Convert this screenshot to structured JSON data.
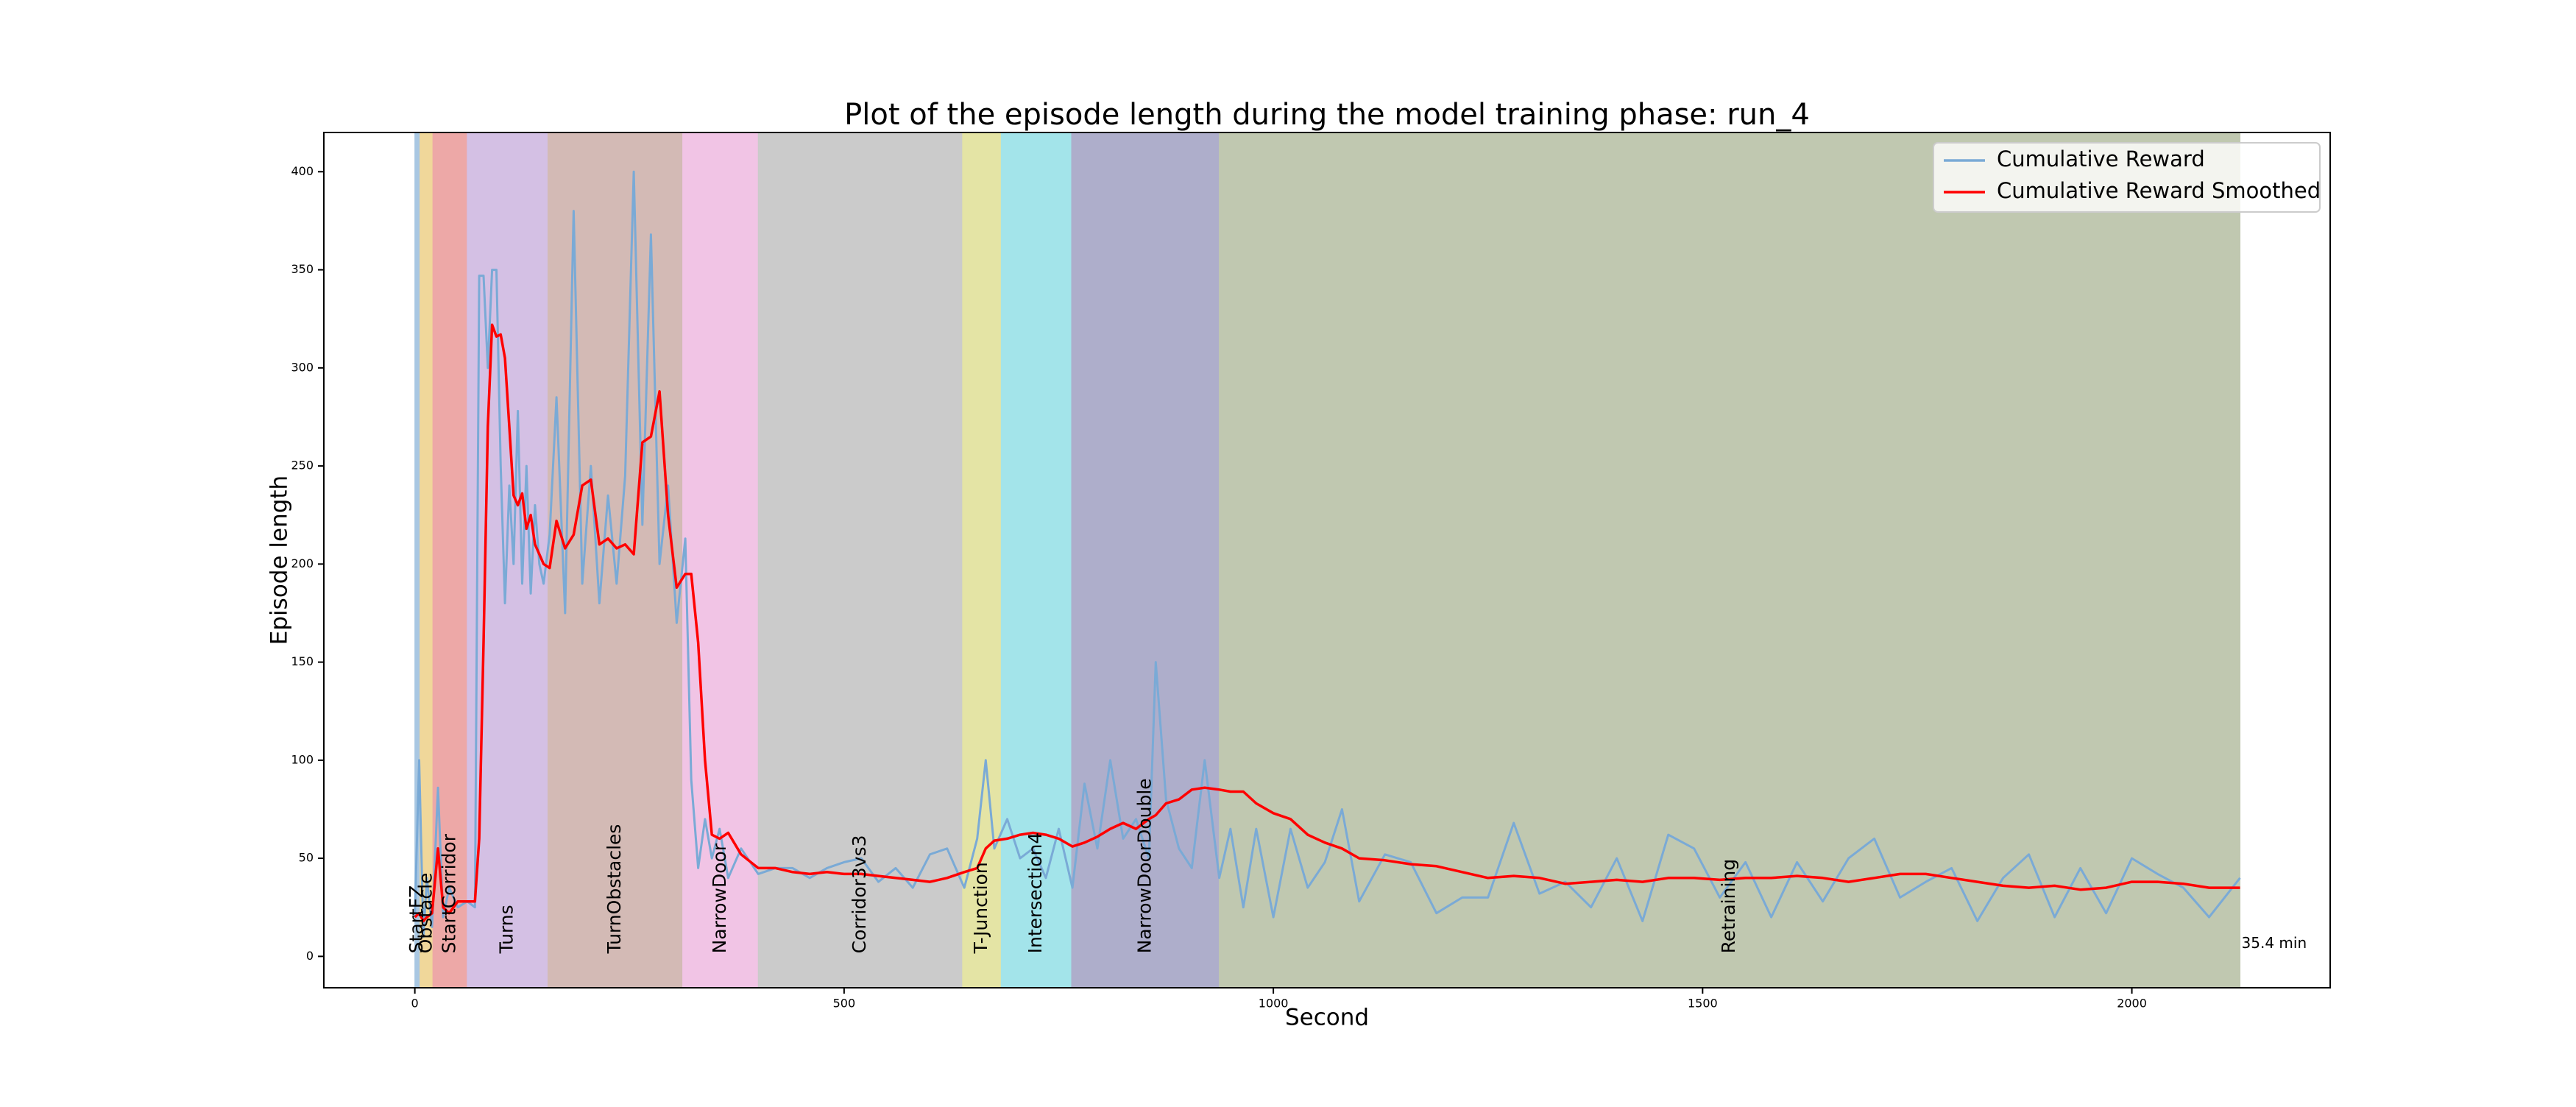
{
  "chart_data": {
    "type": "line",
    "title": "Plot of the episode length during the model training phase: run_4",
    "xlabel": "Second",
    "ylabel": "Episode length",
    "annotation": "35.4 min",
    "xlim": [
      -106,
      2231
    ],
    "ylim": [
      -16,
      420
    ],
    "xticks": [
      0,
      500,
      1000,
      1500,
      2000
    ],
    "yticks": [
      0,
      50,
      100,
      150,
      200,
      250,
      300,
      350,
      400
    ],
    "legend": "upper right",
    "regions": [
      {
        "label": "StartFZ",
        "start": 0,
        "end": 6,
        "color": "#a9c7e2"
      },
      {
        "label": "Obstacle",
        "start": 6,
        "end": 21,
        "color": "#f0d79a"
      },
      {
        "label": "StartCorridor",
        "start": 21,
        "end": 61,
        "color": "#eda8a7"
      },
      {
        "label": "Turns",
        "start": 61,
        "end": 155,
        "color": "#d4c0e4"
      },
      {
        "label": "TurnObstacles",
        "start": 155,
        "end": 312,
        "color": "#d3bab5"
      },
      {
        "label": "NarrowDoor",
        "start": 312,
        "end": 400,
        "color": "#f1c4e5"
      },
      {
        "label": "Corridor3vs3",
        "start": 400,
        "end": 638,
        "color": "#cbcbcb"
      },
      {
        "label": "T-Junction",
        "start": 638,
        "end": 683,
        "color": "#e4e4a5"
      },
      {
        "label": "Intersection4",
        "start": 683,
        "end": 765,
        "color": "#a3e4ea"
      },
      {
        "label": "NarrowDoorDouble",
        "start": 765,
        "end": 937,
        "color": "#aeaecb"
      },
      {
        "label": "Retraining",
        "start": 937,
        "end": 2126,
        "color": "#c0c8b0"
      }
    ],
    "x": [
      0,
      5,
      10,
      14,
      20,
      27,
      33,
      40,
      50,
      61,
      70,
      75,
      80,
      85,
      90,
      95,
      100,
      105,
      110,
      115,
      120,
      125,
      130,
      135,
      140,
      145,
      150,
      157,
      165,
      175,
      185,
      195,
      205,
      215,
      225,
      235,
      245,
      255,
      265,
      275,
      285,
      295,
      305,
      315,
      322,
      330,
      338,
      346,
      355,
      365,
      380,
      400,
      420,
      440,
      460,
      480,
      500,
      520,
      540,
      560,
      580,
      600,
      620,
      640,
      655,
      665,
      675,
      690,
      705,
      720,
      735,
      750,
      766,
      780,
      795,
      810,
      825,
      840,
      855,
      863,
      875,
      890,
      905,
      920,
      937,
      950,
      965,
      980,
      1000,
      1020,
      1040,
      1060,
      1080,
      1100,
      1130,
      1160,
      1190,
      1220,
      1250,
      1280,
      1310,
      1340,
      1370,
      1400,
      1430,
      1460,
      1490,
      1520,
      1550,
      1580,
      1610,
      1640,
      1670,
      1700,
      1730,
      1760,
      1790,
      1820,
      1850,
      1880,
      1910,
      1940,
      1970,
      2000,
      2030,
      2060,
      2090,
      2126
    ],
    "series": [
      {
        "name": "Cumulative Reward",
        "color": "#7aaad6",
        "values": [
          20,
          100,
          10,
          40,
          15,
          86,
          20,
          35,
          25,
          28,
          25,
          347,
          347,
          300,
          350,
          350,
          250,
          180,
          240,
          200,
          278,
          190,
          250,
          185,
          230,
          200,
          190,
          215,
          285,
          175,
          380,
          190,
          250,
          180,
          235,
          190,
          245,
          400,
          220,
          368,
          200,
          240,
          170,
          213,
          90,
          45,
          70,
          50,
          65,
          40,
          55,
          42,
          45,
          45,
          40,
          45,
          48,
          50,
          38,
          45,
          35,
          52,
          55,
          35,
          60,
          100,
          55,
          70,
          50,
          55,
          40,
          65,
          35,
          88,
          55,
          100,
          60,
          70,
          50,
          150,
          80,
          55,
          45,
          100,
          40,
          65,
          25,
          65,
          20,
          65,
          35,
          48,
          75,
          28,
          52,
          48,
          22,
          30,
          30,
          68,
          32,
          38,
          25,
          50,
          18,
          62,
          55,
          30,
          48,
          20,
          48,
          28,
          50,
          60,
          30,
          38,
          45,
          18,
          40,
          52,
          20,
          45,
          22,
          50,
          42,
          35,
          20,
          40
        ]
      },
      {
        "name": "Cumulative Reward Smoothed",
        "color": "#ff0000",
        "values": [
          20,
          22,
          18,
          20,
          22,
          55,
          25,
          22,
          28,
          28,
          28,
          60,
          160,
          270,
          322,
          316,
          317,
          305,
          270,
          235,
          230,
          236,
          218,
          225,
          210,
          205,
          200,
          198,
          222,
          208,
          215,
          240,
          243,
          210,
          213,
          208,
          210,
          205,
          262,
          265,
          288,
          225,
          188,
          195,
          195,
          160,
          100,
          62,
          60,
          63,
          52,
          45,
          45,
          43,
          42,
          43,
          42,
          42,
          41,
          40,
          39,
          38,
          40,
          43,
          45,
          55,
          59,
          60,
          62,
          63,
          62,
          60,
          56,
          58,
          61,
          65,
          68,
          65,
          70,
          72,
          78,
          80,
          85,
          86,
          85,
          84,
          84,
          78,
          73,
          70,
          62,
          58,
          55,
          50,
          49,
          47,
          46,
          43,
          40,
          41,
          40,
          37,
          38,
          39,
          38,
          40,
          40,
          39,
          40,
          40,
          41,
          40,
          38,
          40,
          42,
          42,
          40,
          38,
          36,
          35,
          36,
          34,
          35,
          38,
          38,
          37,
          35,
          35
        ]
      }
    ]
  }
}
